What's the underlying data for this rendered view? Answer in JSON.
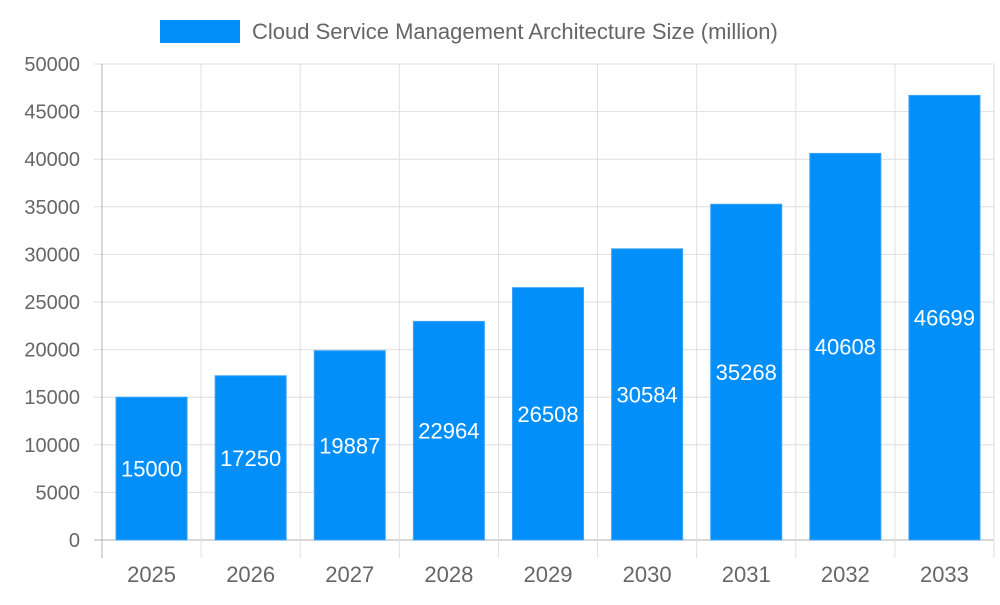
{
  "chart_data": {
    "type": "bar",
    "title": "",
    "xlabel": "",
    "ylabel": "",
    "categories": [
      "2025",
      "2026",
      "2027",
      "2028",
      "2029",
      "2030",
      "2031",
      "2032",
      "2033"
    ],
    "series": [
      {
        "name": "Cloud Service Management Architecture Size (million)",
        "values": [
          15000,
          17250,
          19887,
          22964,
          26508,
          30584,
          35268,
          40608,
          46699
        ],
        "color": "#028ffa"
      }
    ],
    "ylim": [
      0,
      50000
    ],
    "yticks": [
      0,
      5000,
      10000,
      15000,
      20000,
      25000,
      30000,
      35000,
      40000,
      45000,
      50000
    ],
    "grid": true,
    "legend": "top-center",
    "data_labels": true
  }
}
